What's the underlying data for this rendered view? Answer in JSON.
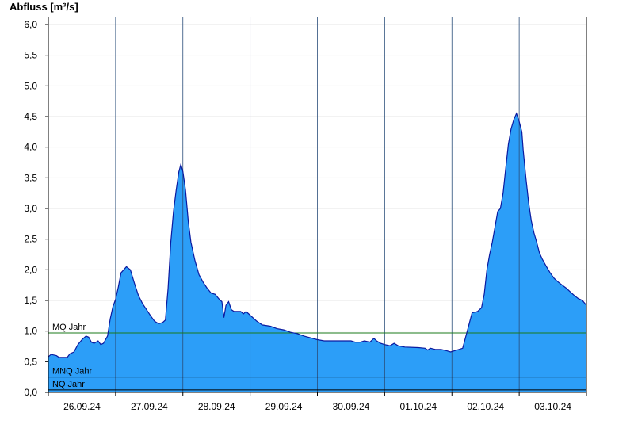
{
  "chart_data": {
    "type": "area",
    "title": "",
    "ylabel": "Abfluss [m³/s]",
    "xlabel": "",
    "ylim": [
      0,
      6.2
    ],
    "yticks": [
      0,
      0.5,
      1.0,
      1.5,
      2.0,
      2.5,
      3.0,
      3.5,
      4.0,
      4.5,
      5.0,
      5.5,
      6.0
    ],
    "ytick_labels": [
      "0,0",
      "0,5",
      "1,0",
      "1,5",
      "2,0",
      "2,5",
      "3,0",
      "3,5",
      "4,0",
      "4,5",
      "5,0",
      "5,5",
      "6,0"
    ],
    "x_range_days": [
      0,
      8
    ],
    "day_boundaries": [
      1,
      2,
      3,
      4,
      5,
      6,
      7
    ],
    "xtick_labels": [
      "26.09.24",
      "27.09.24",
      "28.09.24",
      "29.09.24",
      "30.09.24",
      "01.10.24",
      "02.10.24",
      "03.10.24"
    ],
    "grid": true,
    "fill_color": "#2c9ef8",
    "line_color": "#0a1aa0",
    "reference_lines": [
      {
        "name": "MQ Jahr",
        "value": 0.97,
        "color": "#1a7a1a"
      },
      {
        "name": "MNQ Jahr",
        "value": 0.25,
        "color": "#000000"
      },
      {
        "name": "NQ Jahr",
        "value": 0.04,
        "color": "#000000"
      }
    ],
    "series": [
      {
        "points": [
          [
            0.0,
            0.58
          ],
          [
            0.04,
            0.62
          ],
          [
            0.12,
            0.6
          ],
          [
            0.16,
            0.57
          ],
          [
            0.28,
            0.57
          ],
          [
            0.32,
            0.63
          ],
          [
            0.38,
            0.66
          ],
          [
            0.44,
            0.78
          ],
          [
            0.5,
            0.86
          ],
          [
            0.56,
            0.92
          ],
          [
            0.6,
            0.9
          ],
          [
            0.64,
            0.82
          ],
          [
            0.68,
            0.8
          ],
          [
            0.74,
            0.84
          ],
          [
            0.78,
            0.78
          ],
          [
            0.82,
            0.8
          ],
          [
            0.88,
            0.92
          ],
          [
            0.92,
            1.2
          ],
          [
            0.96,
            1.4
          ],
          [
            1.0,
            1.52
          ],
          [
            1.04,
            1.72
          ],
          [
            1.08,
            1.95
          ],
          [
            1.12,
            2.0
          ],
          [
            1.16,
            2.05
          ],
          [
            1.22,
            2.0
          ],
          [
            1.28,
            1.78
          ],
          [
            1.34,
            1.58
          ],
          [
            1.4,
            1.45
          ],
          [
            1.46,
            1.35
          ],
          [
            1.52,
            1.25
          ],
          [
            1.58,
            1.16
          ],
          [
            1.64,
            1.12
          ],
          [
            1.7,
            1.14
          ],
          [
            1.74,
            1.18
          ],
          [
            1.78,
            1.7
          ],
          [
            1.82,
            2.45
          ],
          [
            1.86,
            2.95
          ],
          [
            1.9,
            3.3
          ],
          [
            1.94,
            3.6
          ],
          [
            1.97,
            3.72
          ],
          [
            2.0,
            3.6
          ],
          [
            2.04,
            3.3
          ],
          [
            2.08,
            2.8
          ],
          [
            2.12,
            2.45
          ],
          [
            2.18,
            2.15
          ],
          [
            2.24,
            1.92
          ],
          [
            2.3,
            1.8
          ],
          [
            2.36,
            1.7
          ],
          [
            2.42,
            1.62
          ],
          [
            2.48,
            1.6
          ],
          [
            2.54,
            1.52
          ],
          [
            2.58,
            1.48
          ],
          [
            2.61,
            1.22
          ],
          [
            2.64,
            1.42
          ],
          [
            2.68,
            1.48
          ],
          [
            2.72,
            1.35
          ],
          [
            2.76,
            1.32
          ],
          [
            2.86,
            1.32
          ],
          [
            2.9,
            1.28
          ],
          [
            2.94,
            1.32
          ],
          [
            2.98,
            1.28
          ],
          [
            3.04,
            1.22
          ],
          [
            3.1,
            1.16
          ],
          [
            3.18,
            1.1
          ],
          [
            3.3,
            1.08
          ],
          [
            3.4,
            1.04
          ],
          [
            3.5,
            1.02
          ],
          [
            3.6,
            0.98
          ],
          [
            3.7,
            0.96
          ],
          [
            3.8,
            0.92
          ],
          [
            3.9,
            0.89
          ],
          [
            4.0,
            0.86
          ],
          [
            4.1,
            0.84
          ],
          [
            4.3,
            0.84
          ],
          [
            4.5,
            0.84
          ],
          [
            4.56,
            0.82
          ],
          [
            4.64,
            0.82
          ],
          [
            4.7,
            0.84
          ],
          [
            4.78,
            0.82
          ],
          [
            4.84,
            0.88
          ],
          [
            4.88,
            0.84
          ],
          [
            4.94,
            0.8
          ],
          [
            5.0,
            0.78
          ],
          [
            5.08,
            0.76
          ],
          [
            5.14,
            0.8
          ],
          [
            5.2,
            0.76
          ],
          [
            5.3,
            0.74
          ],
          [
            5.5,
            0.73
          ],
          [
            5.6,
            0.72
          ],
          [
            5.64,
            0.69
          ],
          [
            5.68,
            0.72
          ],
          [
            5.76,
            0.7
          ],
          [
            5.84,
            0.7
          ],
          [
            5.92,
            0.68
          ],
          [
            5.98,
            0.66
          ],
          [
            6.04,
            0.68
          ],
          [
            6.1,
            0.7
          ],
          [
            6.16,
            0.72
          ],
          [
            6.24,
            1.05
          ],
          [
            6.3,
            1.3
          ],
          [
            6.38,
            1.32
          ],
          [
            6.44,
            1.38
          ],
          [
            6.48,
            1.6
          ],
          [
            6.52,
            2.0
          ],
          [
            6.56,
            2.25
          ],
          [
            6.6,
            2.45
          ],
          [
            6.64,
            2.7
          ],
          [
            6.68,
            2.95
          ],
          [
            6.72,
            3.0
          ],
          [
            6.76,
            3.25
          ],
          [
            6.8,
            3.65
          ],
          [
            6.84,
            4.05
          ],
          [
            6.88,
            4.3
          ],
          [
            6.92,
            4.45
          ],
          [
            6.96,
            4.55
          ],
          [
            7.0,
            4.42
          ],
          [
            7.04,
            4.25
          ],
          [
            7.06,
            3.95
          ],
          [
            7.1,
            3.5
          ],
          [
            7.14,
            3.1
          ],
          [
            7.18,
            2.8
          ],
          [
            7.22,
            2.6
          ],
          [
            7.26,
            2.45
          ],
          [
            7.3,
            2.28
          ],
          [
            7.34,
            2.18
          ],
          [
            7.4,
            2.06
          ],
          [
            7.46,
            1.95
          ],
          [
            7.52,
            1.86
          ],
          [
            7.58,
            1.8
          ],
          [
            7.64,
            1.75
          ],
          [
            7.7,
            1.7
          ],
          [
            7.76,
            1.64
          ],
          [
            7.82,
            1.58
          ],
          [
            7.88,
            1.53
          ],
          [
            7.94,
            1.5
          ],
          [
            8.0,
            1.42
          ]
        ]
      }
    ]
  }
}
